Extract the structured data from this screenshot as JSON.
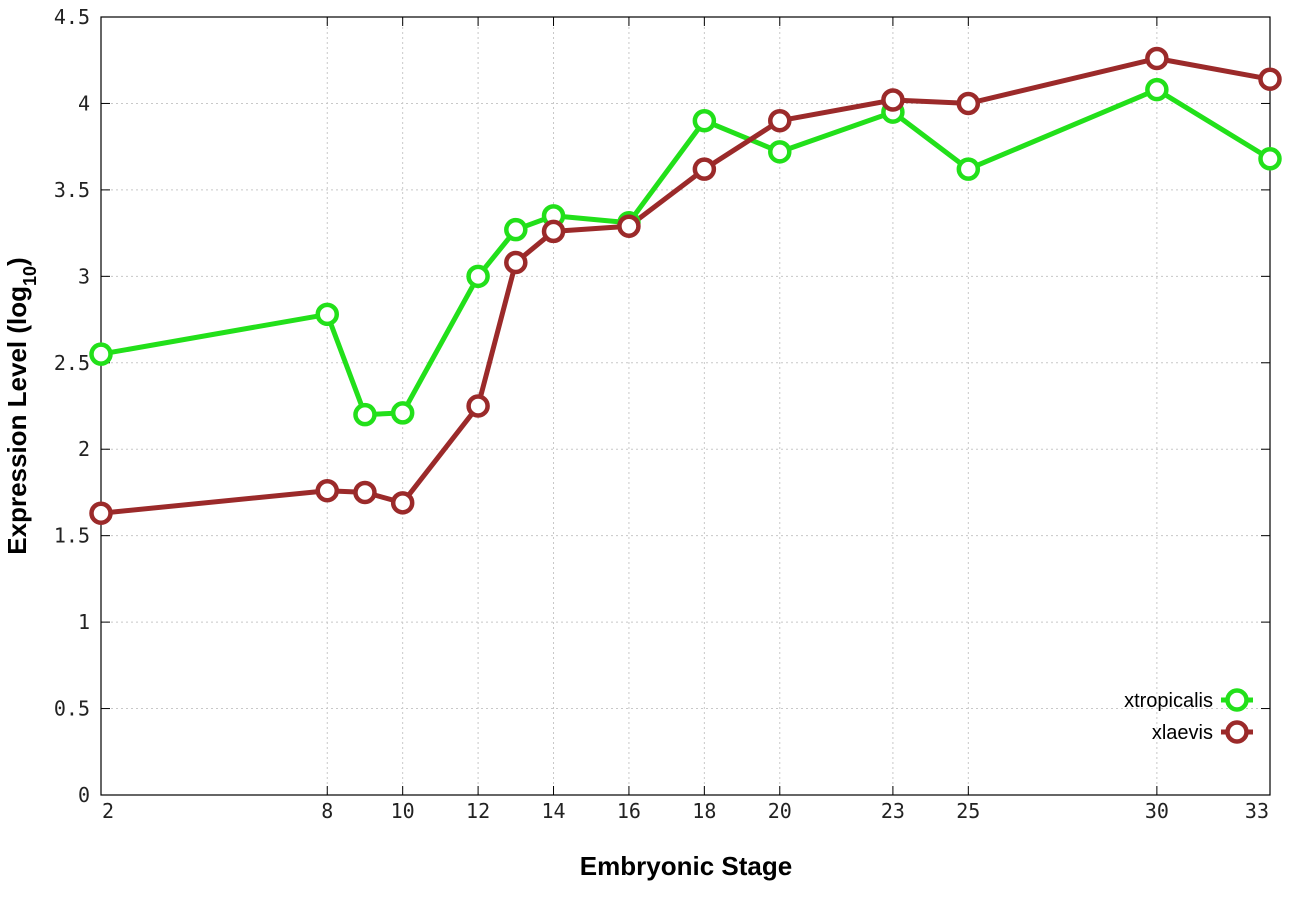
{
  "chart_data": {
    "type": "line",
    "xlabel": "Embryonic Stage",
    "ylabel": "Expression Level (log",
    "ylabel_sub": "10",
    "ylabel_end": ")",
    "xlim": [
      2,
      33
    ],
    "ylim": [
      0,
      4.5
    ],
    "xticks": [
      2,
      8,
      10,
      12,
      14,
      16,
      18,
      20,
      23,
      25,
      30,
      33
    ],
    "xtick_labels": [
      "2",
      "8",
      "10",
      "12",
      "14",
      "16",
      "18",
      "20",
      "23",
      "25",
      "30",
      "33"
    ],
    "yticks": [
      0,
      0.5,
      1,
      1.5,
      2,
      2.5,
      3,
      3.5,
      4,
      4.5
    ],
    "ytick_labels": [
      "0",
      "0.5",
      "1",
      "1.5",
      "2",
      "2.5",
      "3",
      "3.5",
      "4",
      "4.5"
    ],
    "grid": true,
    "legend_position": "bottom-right",
    "series": [
      {
        "name": "xtropicalis",
        "color": "#22e01a",
        "x": [
          2,
          8,
          9,
          10,
          12,
          13,
          14,
          16,
          18,
          20,
          23,
          25,
          30,
          33
        ],
        "y": [
          2.55,
          2.78,
          2.2,
          2.21,
          3.0,
          3.27,
          3.35,
          3.31,
          3.9,
          3.72,
          3.95,
          3.62,
          4.08,
          3.68
        ]
      },
      {
        "name": "xlaevis",
        "color": "#9b2a2a",
        "x": [
          2,
          8,
          9,
          10,
          12,
          13,
          14,
          16,
          18,
          20,
          23,
          25,
          30,
          33
        ],
        "y": [
          1.63,
          1.76,
          1.75,
          1.69,
          2.25,
          3.08,
          3.26,
          3.29,
          3.62,
          3.9,
          4.02,
          4.0,
          4.26,
          4.14
        ]
      }
    ]
  }
}
